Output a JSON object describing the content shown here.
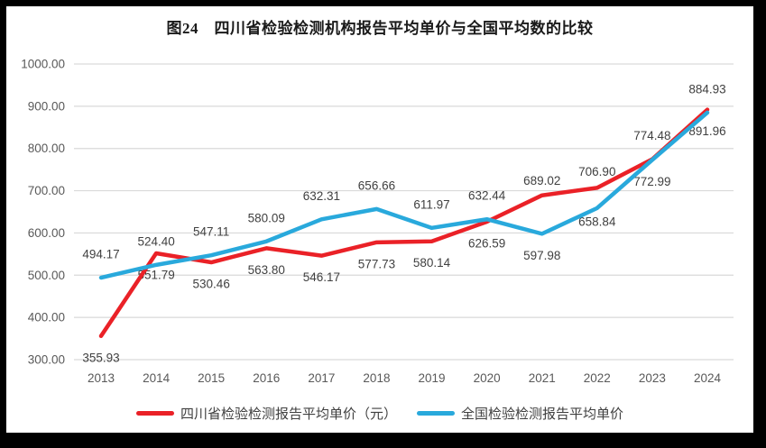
{
  "title": "图24　四川省检验检测机构报告平均单价与全国平均数的比较",
  "chart_data": {
    "type": "line",
    "categories": [
      "2013",
      "2014",
      "2015",
      "2016",
      "2017",
      "2018",
      "2019",
      "2020",
      "2021",
      "2022",
      "2023",
      "2024"
    ],
    "series": [
      {
        "name": "四川省检验检测报告平均单价（元）",
        "color": "#EA2127",
        "values": [
          355.93,
          551.79,
          530.46,
          563.8,
          546.17,
          577.73,
          580.14,
          626.59,
          689.02,
          706.9,
          774.48,
          891.96
        ],
        "label_side": [
          "below",
          "below",
          "below",
          "below",
          "below",
          "below",
          "below",
          "below",
          "above",
          "above",
          "above",
          "below"
        ],
        "label_dy_override": {
          "8": -16,
          "9": -18
        }
      },
      {
        "name": "全国检验检测报告平均单价",
        "color": "#29A9DC",
        "values": [
          494.17,
          524.4,
          547.11,
          580.09,
          632.31,
          656.66,
          611.97,
          632.44,
          597.98,
          658.84,
          772.99,
          884.93
        ],
        "label_side": [
          "above",
          "above",
          "above",
          "above",
          "above",
          "above",
          "above",
          "above",
          "below",
          "below",
          "below",
          "above"
        ],
        "label_dy_override": {
          "9": 15
        }
      }
    ],
    "title": "图24　四川省检验检测机构报告平均单价与全国平均数的比较",
    "xlabel": "",
    "ylabel": "",
    "ylim": [
      300,
      1000
    ],
    "ytick_step": 100,
    "ytick_labels": [
      "300.00",
      "400.00",
      "500.00",
      "600.00",
      "700.00",
      "800.00",
      "900.00",
      "1000.00"
    ],
    "grid": "horizontal-only",
    "legend_position": "bottom",
    "colors": {
      "grid": "#D9D9D9",
      "tick_label": "#595959",
      "data_label": "#404040",
      "frame": "#000000",
      "plot_background": "#FFFFFF"
    }
  }
}
